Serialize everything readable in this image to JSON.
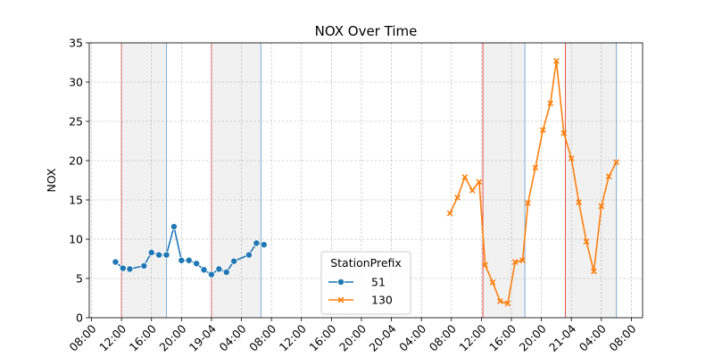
{
  "chart_data": {
    "type": "line",
    "title": "NOX  Over Time",
    "xlabel": "",
    "ylabel": "NOX",
    "ylim": [
      0,
      35
    ],
    "y_ticks": [
      0,
      5,
      10,
      15,
      20,
      25,
      30,
      35
    ],
    "x_ticks": [
      {
        "t": 0,
        "label": "08:00"
      },
      {
        "t": 4,
        "label": "12:00"
      },
      {
        "t": 8,
        "label": "16:00"
      },
      {
        "t": 12,
        "label": "20:00"
      },
      {
        "t": 16,
        "label": "19-04"
      },
      {
        "t": 20,
        "label": "04:00"
      },
      {
        "t": 24,
        "label": "08:00"
      },
      {
        "t": 28,
        "label": "12:00"
      },
      {
        "t": 32,
        "label": "16:00"
      },
      {
        "t": 36,
        "label": "20:00"
      },
      {
        "t": 40,
        "label": "20-04"
      },
      {
        "t": 44,
        "label": "04:00"
      },
      {
        "t": 48,
        "label": "08:00"
      },
      {
        "t": 52,
        "label": "12:00"
      },
      {
        "t": 56,
        "label": "16:00"
      },
      {
        "t": 60,
        "label": "20:00"
      },
      {
        "t": 64,
        "label": "21-04"
      },
      {
        "t": 68,
        "label": "04:00"
      },
      {
        "t": 72,
        "label": "08:00"
      }
    ],
    "xlim": [
      -0.3,
      73.5
    ],
    "grid": true,
    "legend": {
      "title": "StationPrefix",
      "position": "lower-center"
    },
    "shaded_periods": [
      {
        "start": 4,
        "end": 10
      },
      {
        "start": 16,
        "end": 22.6
      },
      {
        "start": 52.2,
        "end": 57.8
      },
      {
        "start": 63.2,
        "end": 70
      }
    ],
    "series": [
      {
        "name": "51",
        "color": "#1f77b4",
        "marker": "circle",
        "points": [
          [
            3.2,
            7.1
          ],
          [
            4.2,
            6.3
          ],
          [
            5.1,
            6.2
          ],
          [
            7.0,
            6.6
          ],
          [
            8.0,
            8.3
          ],
          [
            9.0,
            8.0
          ],
          [
            10.0,
            8.0
          ],
          [
            11.0,
            11.6
          ],
          [
            12.0,
            7.3
          ],
          [
            13.0,
            7.3
          ],
          [
            14.0,
            6.9
          ],
          [
            15.0,
            6.1
          ],
          [
            16.0,
            5.5
          ],
          [
            17.0,
            6.2
          ],
          [
            18.0,
            5.8
          ],
          [
            19.0,
            7.2
          ],
          [
            21.0,
            8.0
          ],
          [
            22.0,
            9.5
          ],
          [
            23.0,
            9.3
          ]
        ]
      },
      {
        "name": "130",
        "color": "#ff7f0e",
        "marker": "x",
        "points": [
          [
            47.8,
            13.3
          ],
          [
            48.8,
            15.3
          ],
          [
            49.8,
            17.9
          ],
          [
            50.8,
            16.2
          ],
          [
            51.7,
            17.3
          ],
          [
            52.5,
            6.7
          ],
          [
            53.5,
            4.5
          ],
          [
            54.5,
            2.1
          ],
          [
            55.5,
            1.8
          ],
          [
            56.5,
            7.1
          ],
          [
            57.5,
            7.3
          ],
          [
            58.2,
            14.6
          ],
          [
            59.2,
            19.1
          ],
          [
            60.2,
            23.9
          ],
          [
            61.2,
            27.3
          ],
          [
            62.0,
            32.7
          ],
          [
            63.0,
            23.5
          ],
          [
            64.0,
            20.3
          ],
          [
            65.0,
            14.7
          ],
          [
            66.0,
            9.7
          ],
          [
            67.0,
            5.9
          ],
          [
            68.0,
            14.2
          ],
          [
            69.0,
            18.0
          ],
          [
            70.0,
            19.8
          ]
        ]
      }
    ]
  }
}
